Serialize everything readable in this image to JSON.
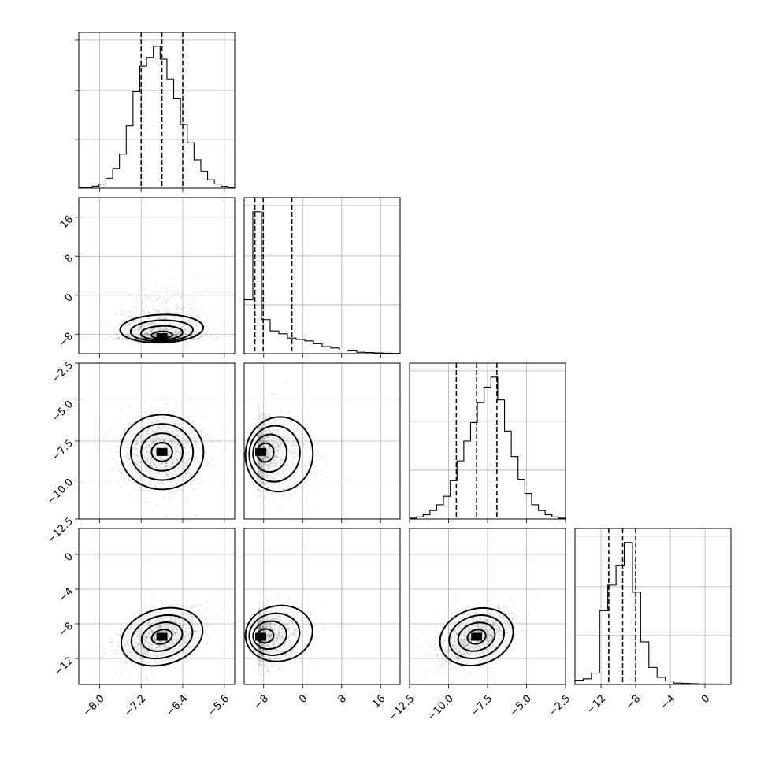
{
  "chart_data": {
    "type": "corner",
    "parameters": [
      {
        "range": [
          -8.4,
          -5.4
        ],
        "ticks": [
          "-8.0",
          "-7.2",
          "-6.4",
          "-5.6"
        ],
        "tick_values": [
          -8.0,
          -7.2,
          -6.4,
          -5.6
        ],
        "mean": -6.8,
        "sd": 0.4,
        "quantiles": [
          -7.2,
          -6.8,
          -6.4
        ],
        "hist": [
          0.003,
          0.006,
          0.015,
          0.03,
          0.07,
          0.14,
          0.24,
          0.44,
          0.68,
          0.86,
          0.92,
          1.0,
          0.91,
          0.77,
          0.63,
          0.45,
          0.32,
          0.2,
          0.12,
          0.06,
          0.03,
          0.013,
          0.006
        ]
      },
      {
        "range": [
          -12,
          20
        ],
        "ticks": [
          "-8",
          "0",
          "8",
          "16"
        ],
        "tick_values": [
          -8,
          0,
          8,
          16
        ],
        "mean": -7,
        "sd": 5,
        "quantiles": [
          -9.8,
          -8.1,
          -2.2
        ],
        "hist": [
          0.38,
          1.0,
          0.24,
          0.16,
          0.14,
          0.11,
          0.1,
          0.09,
          0.07,
          0.05,
          0.04,
          0.025,
          0.02,
          0.01,
          0.008,
          0.005,
          0.003,
          0.002
        ]
      },
      {
        "range": [
          -12.5,
          -2.5
        ],
        "ticks": [
          "-12.5",
          "-10.0",
          "-7.5",
          "-5.0",
          "-2.5"
        ],
        "tick_values": [
          -12.5,
          -10.0,
          -7.5,
          -5.0,
          -2.5
        ],
        "mean": -8.2,
        "sd": 1.2,
        "quantiles": [
          -9.5,
          -8.2,
          -6.9
        ],
        "hist": [
          0.006,
          0.015,
          0.03,
          0.06,
          0.1,
          0.16,
          0.27,
          0.41,
          0.55,
          0.68,
          0.82,
          0.93,
          1.0,
          0.84,
          0.62,
          0.44,
          0.28,
          0.18,
          0.1,
          0.06,
          0.03,
          0.015,
          0.006
        ]
      },
      {
        "range": [
          -15,
          3
        ],
        "ticks": [
          "-12",
          "-8",
          "-4",
          "0"
        ],
        "tick_values": [
          -12,
          -8,
          -4,
          0
        ],
        "mean": -9.5,
        "sd": 1.6,
        "quantiles": [
          -11.1,
          -9.5,
          -8.0
        ],
        "hist": [
          0.03,
          0.04,
          0.08,
          0.52,
          0.7,
          0.84,
          1.0,
          0.65,
          0.3,
          0.12,
          0.05,
          0.025,
          0.01,
          0.008,
          0.006,
          0.004,
          0.003,
          0.003,
          0.002
        ]
      }
    ],
    "histograms": "1d marginal step histograms with dashed lines at 16/50/84 percentiles",
    "pairs": "2d scatter + filled density + contours (0.5, 1, 1.5, 2 sigma)",
    "axis_labels": []
  }
}
